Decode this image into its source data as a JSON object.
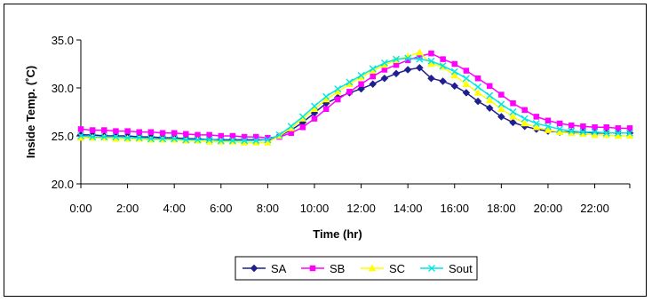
{
  "chart_data": {
    "type": "line",
    "title": "",
    "xlabel": "Time (hr)",
    "ylabel": "Inside Temp. (˚C)",
    "ylim": [
      20,
      35
    ],
    "yticks": [
      "20.0",
      "25.0",
      "30.0",
      "35.0"
    ],
    "xlim": [
      0,
      23.5
    ],
    "xtick_labels": [
      "0:00",
      "2:00",
      "4:00",
      "6:00",
      "8:00",
      "10:00",
      "12:00",
      "14:00",
      "16:00",
      "18:00",
      "20:00",
      "22:00"
    ],
    "x": [
      0,
      0.5,
      1,
      1.5,
      2,
      2.5,
      3,
      3.5,
      4,
      4.5,
      5,
      5.5,
      6,
      6.5,
      7,
      7.5,
      8,
      8.5,
      9,
      9.5,
      10,
      10.5,
      11,
      11.5,
      12,
      12.5,
      13,
      13.5,
      14,
      14.5,
      15,
      15.5,
      16,
      16.5,
      17,
      17.5,
      18,
      18.5,
      19,
      19.5,
      20,
      20.5,
      21,
      21.5,
      22,
      22.5,
      23,
      23.5
    ],
    "series": [
      {
        "name": "SA",
        "color": "#1f1f8f",
        "marker": "diamond",
        "values": [
          25.1,
          25.1,
          25.0,
          25.0,
          25.0,
          24.9,
          24.9,
          24.8,
          24.8,
          24.7,
          24.7,
          24.6,
          24.6,
          24.6,
          24.6,
          24.6,
          24.6,
          25.0,
          25.6,
          26.4,
          27.4,
          28.4,
          29.0,
          29.5,
          29.9,
          30.4,
          31.0,
          31.5,
          31.9,
          32.1,
          31.0,
          30.7,
          30.2,
          29.5,
          28.6,
          27.9,
          27.0,
          26.4,
          26.0,
          25.7,
          25.5,
          25.4,
          25.4,
          25.4,
          25.3,
          25.3,
          25.3,
          25.3
        ]
      },
      {
        "name": "SB",
        "color": "#ff00ff",
        "marker": "square",
        "values": [
          25.7,
          25.6,
          25.6,
          25.5,
          25.5,
          25.4,
          25.4,
          25.3,
          25.3,
          25.2,
          25.1,
          25.1,
          25.0,
          25.0,
          24.9,
          24.9,
          24.8,
          24.9,
          25.3,
          25.9,
          26.8,
          27.8,
          28.8,
          29.6,
          30.4,
          31.2,
          31.9,
          32.4,
          32.9,
          33.3,
          33.6,
          33.0,
          32.5,
          31.8,
          31.0,
          30.2,
          29.3,
          28.4,
          27.7,
          27.0,
          26.6,
          26.3,
          26.1,
          26.0,
          25.9,
          25.9,
          25.8,
          25.8
        ]
      },
      {
        "name": "SC",
        "color": "#ffff00",
        "marker": "triangle",
        "values": [
          24.8,
          24.8,
          24.8,
          24.7,
          24.7,
          24.7,
          24.6,
          24.6,
          24.6,
          24.5,
          24.5,
          24.4,
          24.4,
          24.4,
          24.3,
          24.3,
          24.3,
          25.0,
          25.8,
          26.8,
          27.8,
          28.8,
          29.6,
          30.4,
          31.1,
          31.8,
          32.4,
          32.9,
          33.3,
          33.7,
          32.5,
          32.2,
          31.3,
          30.4,
          29.5,
          28.7,
          27.8,
          27.0,
          26.3,
          25.9,
          25.6,
          25.4,
          25.3,
          25.2,
          25.1,
          25.1,
          25.0,
          25.0
        ]
      },
      {
        "name": "Sout",
        "color": "#00e5e5",
        "marker": "x",
        "values": [
          25.0,
          24.9,
          24.9,
          24.9,
          24.8,
          24.8,
          24.7,
          24.7,
          24.7,
          24.6,
          24.6,
          24.6,
          24.5,
          24.5,
          24.5,
          24.5,
          24.6,
          25.1,
          26.0,
          27.0,
          28.1,
          29.1,
          29.9,
          30.6,
          31.3,
          32.0,
          32.6,
          33.0,
          33.1,
          33.0,
          32.8,
          32.3,
          31.7,
          31.0,
          30.1,
          29.2,
          28.3,
          27.5,
          26.8,
          26.3,
          26.0,
          25.7,
          25.5,
          25.4,
          25.4,
          25.3,
          25.3,
          25.3
        ]
      }
    ],
    "grid": false,
    "legend_position": "bottom"
  }
}
